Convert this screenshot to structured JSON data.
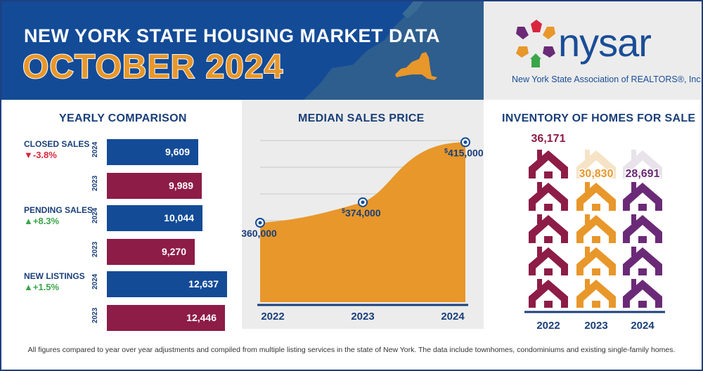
{
  "header": {
    "title_line1": "NEW YORK STATE HOUSING MARKET DATA",
    "title_line2": "OCTOBER 2024"
  },
  "logo": {
    "name": "nysar",
    "subtitle": "New York State Association of REALTORS®, Inc."
  },
  "sections": {
    "yearly": "YEARLY COMPARISON",
    "median": "MEDIAN SALES PRICE",
    "inventory": "INVENTORY OF HOMES FOR SALE"
  },
  "colors": {
    "navy": "#134b97",
    "maroon": "#8d1c47",
    "orange": "#e8972a",
    "purple": "#6b2a77",
    "green": "#3aa64a",
    "red": "#d7263d"
  },
  "footer": "All figures compared to year over year adjustments and compiled from multiple listing services in the state of New York.  The data include townhomes, condominiums and existing single-family homes.",
  "chart_data": [
    {
      "type": "bar",
      "title": "YEARLY COMPARISON",
      "categories": [
        "CLOSED SALES",
        "PENDING SALES",
        "NEW LISTINGS"
      ],
      "changes": [
        {
          "direction": "down",
          "text": "-3.8%"
        },
        {
          "direction": "up",
          "text": "+8.3%"
        },
        {
          "direction": "up",
          "text": "+1.5%"
        }
      ],
      "series": [
        {
          "name": "2024",
          "values": [
            9609,
            10044,
            12637
          ],
          "labels": [
            "9,609",
            "10,044",
            "12,637"
          ]
        },
        {
          "name": "2023",
          "values": [
            9989,
            9270,
            12446
          ],
          "labels": [
            "9,989",
            "9,270",
            "12,446"
          ]
        }
      ],
      "xlim": [
        0,
        13600
      ]
    },
    {
      "type": "area",
      "title": "MEDIAN SALES PRICE",
      "x": [
        "2022",
        "2023",
        "2024"
      ],
      "values": [
        360000,
        374000,
        415000
      ],
      "labels": [
        "360,000",
        "374,000",
        "415,000"
      ],
      "currency_symbol": "$",
      "ylim": [
        300000,
        420000
      ]
    },
    {
      "type": "bar",
      "title": "INVENTORY OF HOMES FOR SALE",
      "categories": [
        "2022",
        "2023",
        "2024"
      ],
      "values": [
        36171,
        30830,
        28691
      ],
      "labels": [
        "36,171",
        "30,830",
        "28,691"
      ],
      "ylim": [
        0,
        36171
      ]
    }
  ]
}
